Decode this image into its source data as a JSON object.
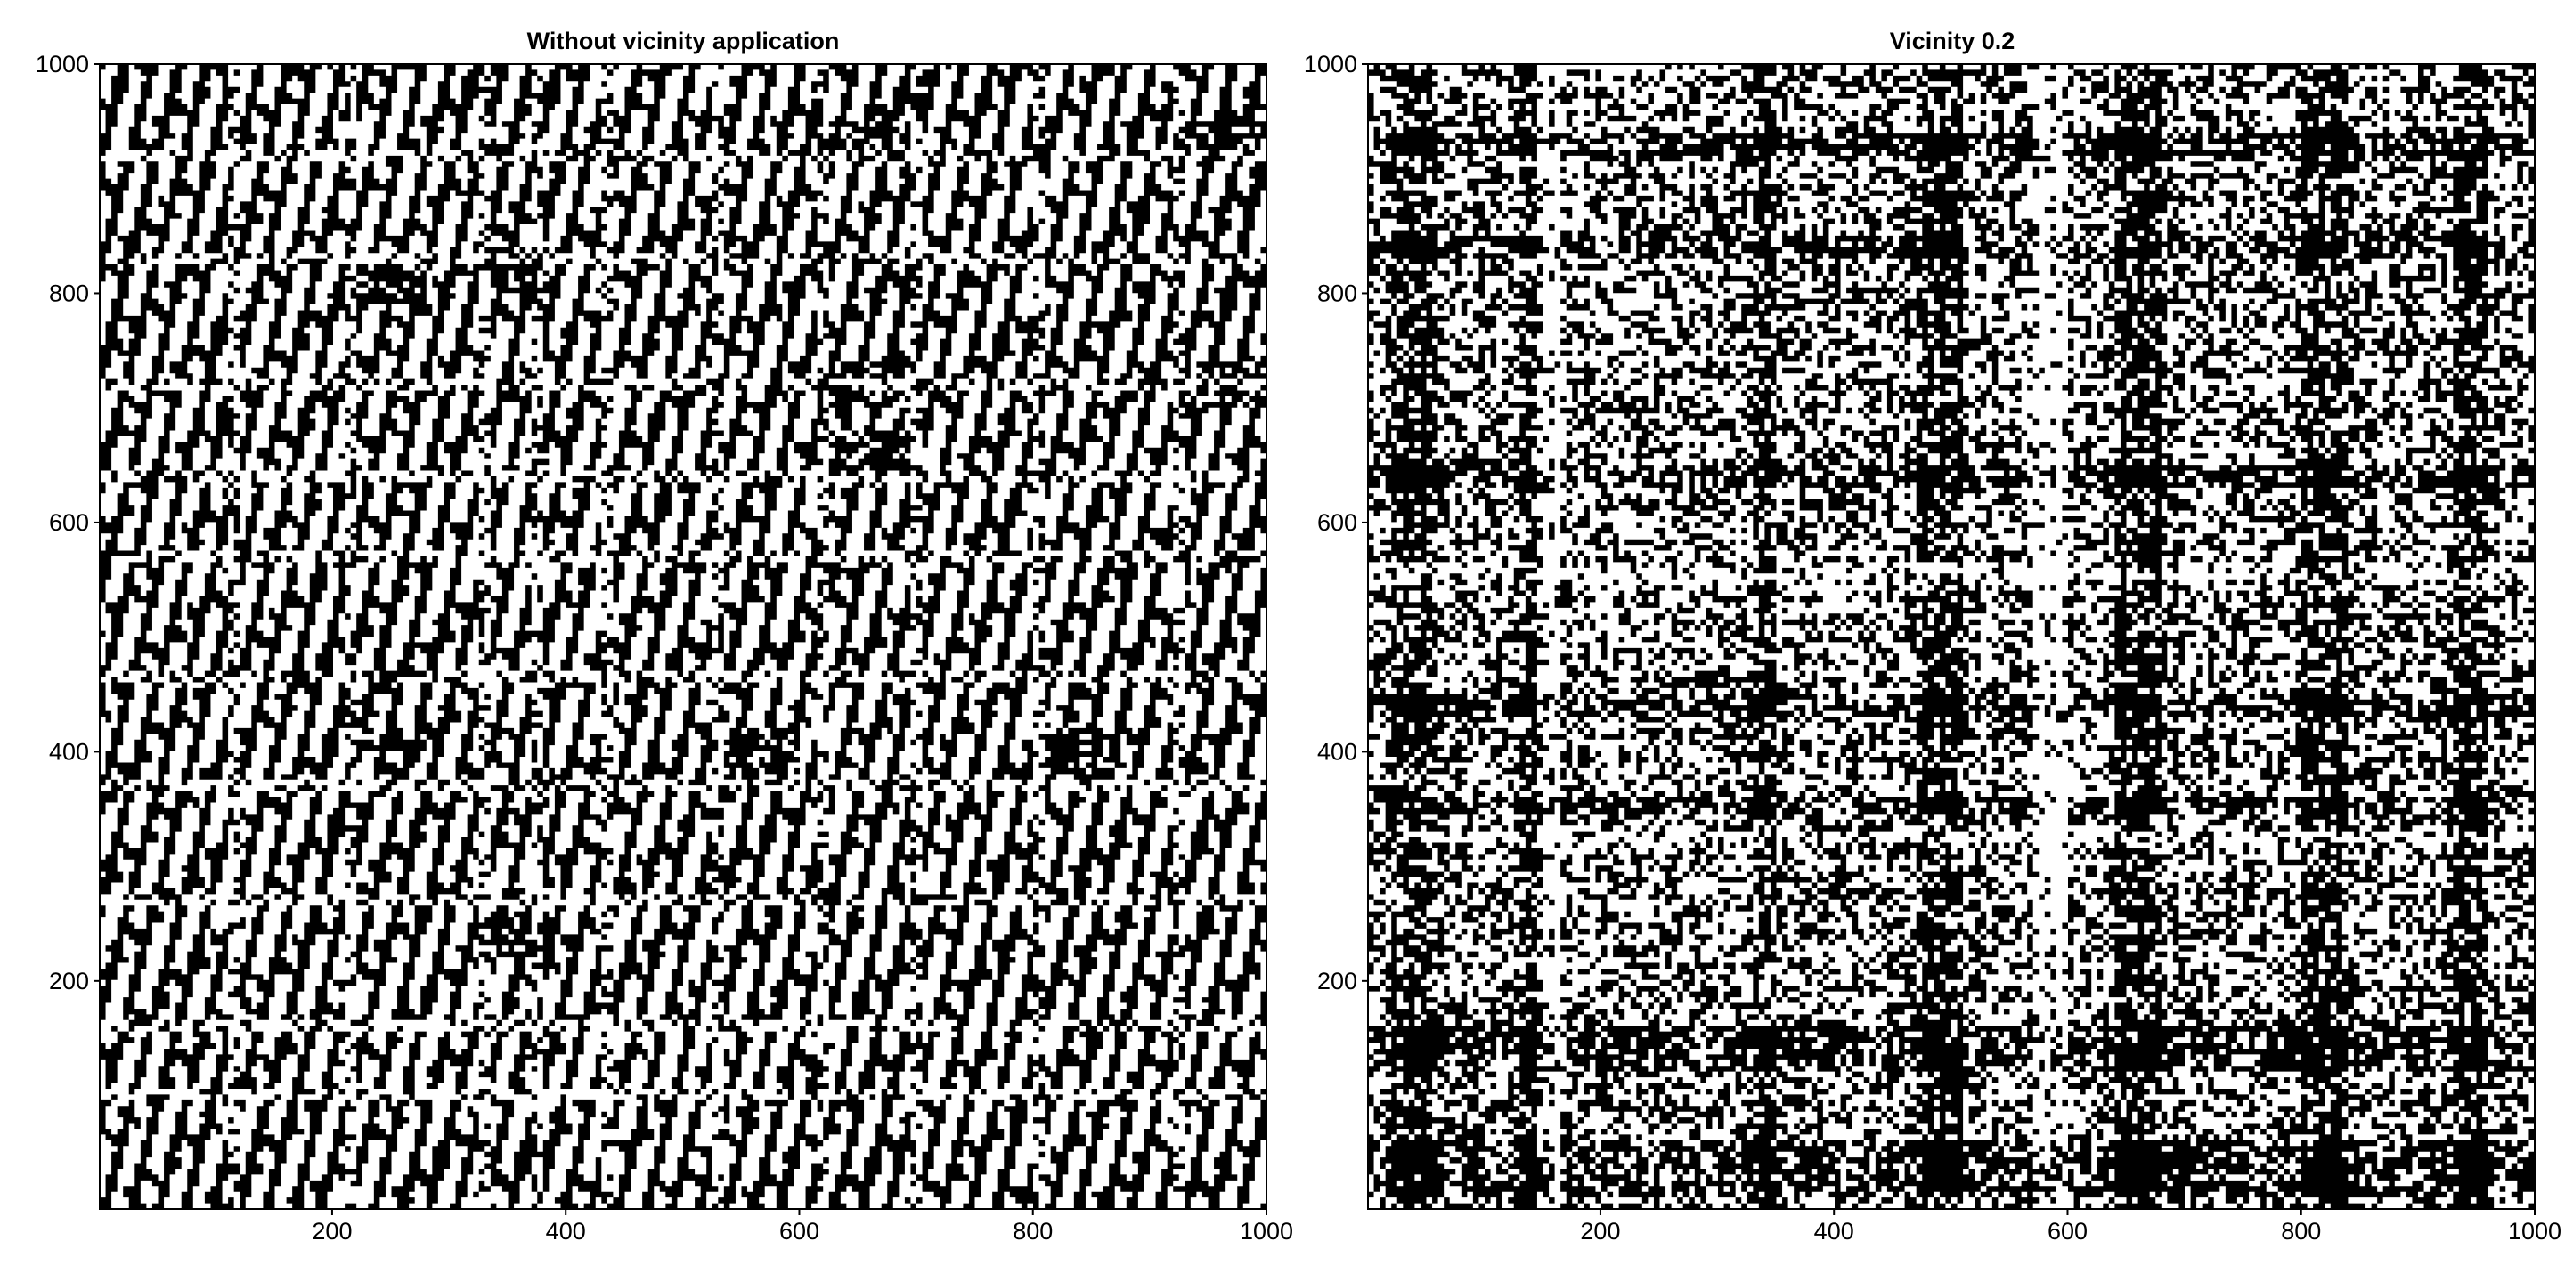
{
  "chart_data": [
    {
      "type": "heatmap",
      "title": "Without vicinity application",
      "xlabel": "",
      "ylabel": "",
      "xlim": [
        1,
        1000
      ],
      "ylim": [
        1,
        1000
      ],
      "xticks": [
        200,
        400,
        600,
        800,
        1000
      ],
      "yticks": [
        200,
        400,
        600,
        800,
        1000
      ],
      "grid": false,
      "colors": {
        "recurrent": "#000000",
        "background": "#ffffff"
      },
      "matrix_size": 1000,
      "pattern": "periodic binary recurrence plot with block structure",
      "block_boundaries_x": [
        115,
        215,
        330,
        375,
        435,
        530,
        620,
        700,
        805,
        925
      ],
      "block_boundaries_y": [
        100,
        160,
        270,
        370,
        465,
        570,
        640,
        720,
        830,
        920
      ],
      "dense_blocks": [
        [
          325,
          420,
          385,
          400
        ],
        [
          325,
          220,
          385,
          260
        ],
        [
          220,
          400,
          280,
          420
        ],
        [
          620,
          640,
          700,
          680
        ],
        [
          620,
          700,
          700,
          740
        ],
        [
          920,
          700,
          1000,
          740
        ],
        [
          620,
          920,
          700,
          950
        ],
        [
          920,
          920,
          1000,
          950
        ],
        [
          325,
          800,
          385,
          840
        ],
        [
          215,
          790,
          280,
          830
        ],
        [
          800,
          380,
          870,
          420
        ],
        [
          530,
          380,
          600,
          420
        ]
      ]
    },
    {
      "type": "heatmap",
      "title": "Vicinity 0.2",
      "xlabel": "",
      "ylabel": "",
      "xlim": [
        1,
        1000
      ],
      "ylim": [
        1,
        1000
      ],
      "xticks": [
        200,
        400,
        600,
        800,
        1000
      ],
      "yticks": [
        200,
        400,
        600,
        800,
        1000
      ],
      "grid": false,
      "colors": {
        "recurrent": "#000000",
        "background": "#ffffff"
      },
      "matrix_size": 1000,
      "pattern": "noisy binary recurrence plot with stripe texture",
      "dark_bands_x": [
        20,
        60,
        130,
        150,
        330,
        350,
        470,
        510,
        640,
        680,
        800,
        840,
        930,
        960
      ],
      "dark_bands_y": [
        10,
        60,
        120,
        160,
        330,
        360,
        430,
        450,
        630,
        650,
        830,
        850,
        920,
        940
      ],
      "light_bands_x": [
        145,
        165,
        570,
        600
      ],
      "light_bands_y": [
        320,
        345,
        545,
        565
      ]
    }
  ]
}
